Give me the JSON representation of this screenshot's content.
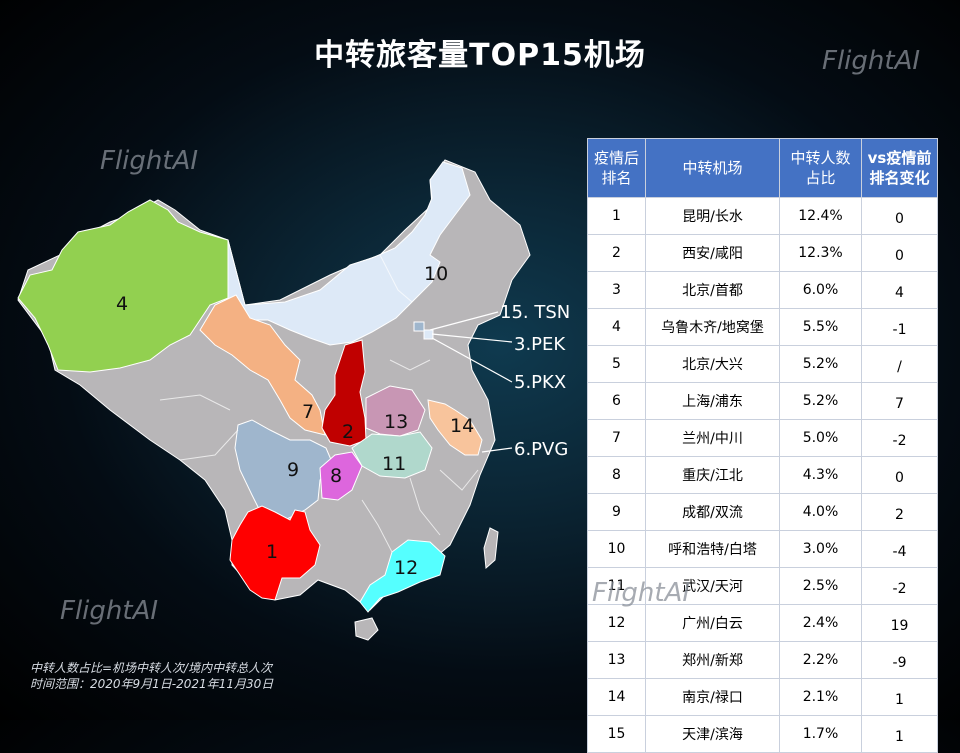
{
  "title": "中转旅客量TOP15机场",
  "watermark": "FlightAI",
  "footnote": {
    "line1": "中转人数占比=机场中转人次/境内中转总人次",
    "line2": "时间范围：2020年9月1日-2021年11月30日"
  },
  "colors": {
    "table_header": "#4472c4",
    "region_default": "#b8b6b8",
    "rank1": "#ff0000",
    "rank2": "#c00000",
    "rank4": "#92d050",
    "rank7": "#f4b183",
    "rank8": "#dd66dd",
    "rank9": "#9fb6cd",
    "rank10": "#dde9f7",
    "rank11": "#b0d8cc",
    "rank12": "#55ffff",
    "rank13": "#c896b4",
    "rank14": "#f8c49c"
  },
  "chart_data": {
    "type": "table",
    "columns": [
      "疫情后排名",
      "中转机场",
      "中转人数占比",
      "vs疫情前排名变化"
    ],
    "header_lines": [
      [
        "疫情后",
        "排名"
      ],
      [
        "中转机场"
      ],
      [
        "中转人数",
        "占比"
      ],
      [
        "vs疫情前",
        "排名变化"
      ]
    ],
    "rows": [
      {
        "rank": "1",
        "airport": "昆明/长水",
        "share": "12.4%",
        "change": "0"
      },
      {
        "rank": "2",
        "airport": "西安/咸阳",
        "share": "12.3%",
        "change": "0"
      },
      {
        "rank": "3",
        "airport": "北京/首都",
        "share": "6.0%",
        "change": "4"
      },
      {
        "rank": "4",
        "airport": "乌鲁木齐/地窝堡",
        "share": "5.5%",
        "change": "-1"
      },
      {
        "rank": "5",
        "airport": "北京/大兴",
        "share": "5.2%",
        "change": "/"
      },
      {
        "rank": "6",
        "airport": "上海/浦东",
        "share": "5.2%",
        "change": "7"
      },
      {
        "rank": "7",
        "airport": "兰州/中川",
        "share": "5.0%",
        "change": "-2"
      },
      {
        "rank": "8",
        "airport": "重庆/江北",
        "share": "4.3%",
        "change": "0"
      },
      {
        "rank": "9",
        "airport": "成都/双流",
        "share": "4.0%",
        "change": "2"
      },
      {
        "rank": "10",
        "airport": "呼和浩特/白塔",
        "share": "3.0%",
        "change": "-4"
      },
      {
        "rank": "11",
        "airport": "武汉/天河",
        "share": "2.5%",
        "change": "-2"
      },
      {
        "rank": "12",
        "airport": "广州/白云",
        "share": "2.4%",
        "change": "19"
      },
      {
        "rank": "13",
        "airport": "郑州/新郑",
        "share": "2.2%",
        "change": "-9"
      },
      {
        "rank": "14",
        "airport": "南京/禄口",
        "share": "2.1%",
        "change": "1"
      },
      {
        "rank": "15",
        "airport": "天津/滨海",
        "share": "1.7%",
        "change": "1"
      }
    ],
    "map_labels": [
      "4",
      "10",
      "7",
      "2",
      "13",
      "14",
      "9",
      "8",
      "11",
      "1",
      "12"
    ],
    "callouts": [
      "15. TSN",
      "3.PEK",
      "5.PKX",
      "6.PVG"
    ]
  }
}
